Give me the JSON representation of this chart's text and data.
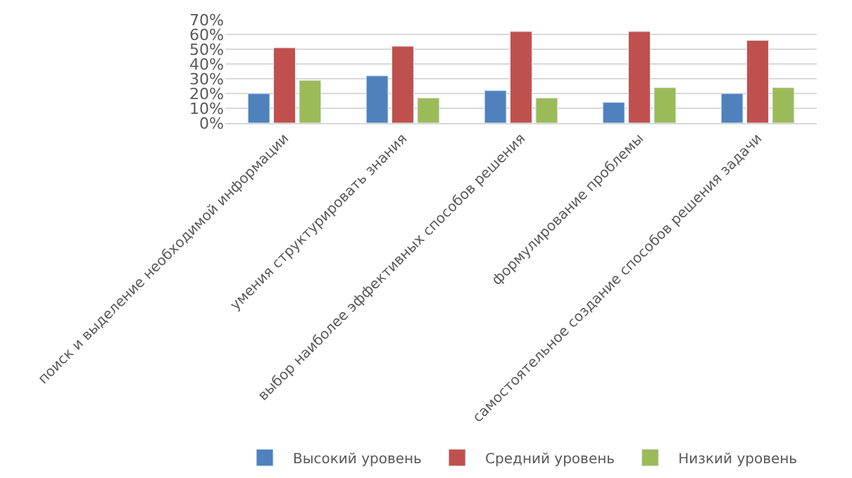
{
  "chart_data": {
    "type": "bar",
    "categories": [
      "поиск и выделение необходимой информации",
      "умения структурировать знания",
      "выбор наиболее эффективных способов решения",
      "формулирование проблемы",
      "самостоятельное создание способов решения задачи"
    ],
    "series": [
      {
        "name": "Высокий уровень",
        "color": "#4f81bd",
        "values": [
          20,
          32,
          22,
          14,
          20
        ]
      },
      {
        "name": "Средний уровень",
        "color": "#c0504d",
        "values": [
          51,
          52,
          62,
          62,
          56
        ]
      },
      {
        "name": "Низкий уровень",
        "color": "#9bbb59",
        "values": [
          29,
          17,
          17,
          24,
          24
        ]
      }
    ],
    "ylim": [
      0,
      70
    ],
    "yticks": [
      {
        "value": 0,
        "label": "0%"
      },
      {
        "value": 10,
        "label": "10%"
      },
      {
        "value": 20,
        "label": "20%"
      },
      {
        "value": 30,
        "label": "30%"
      },
      {
        "value": 40,
        "label": "40%"
      },
      {
        "value": 50,
        "label": "50%"
      },
      {
        "value": 60,
        "label": "60%"
      },
      {
        "value": 70,
        "label": "70%"
      }
    ],
    "grid": "y",
    "legend": "bottom"
  }
}
